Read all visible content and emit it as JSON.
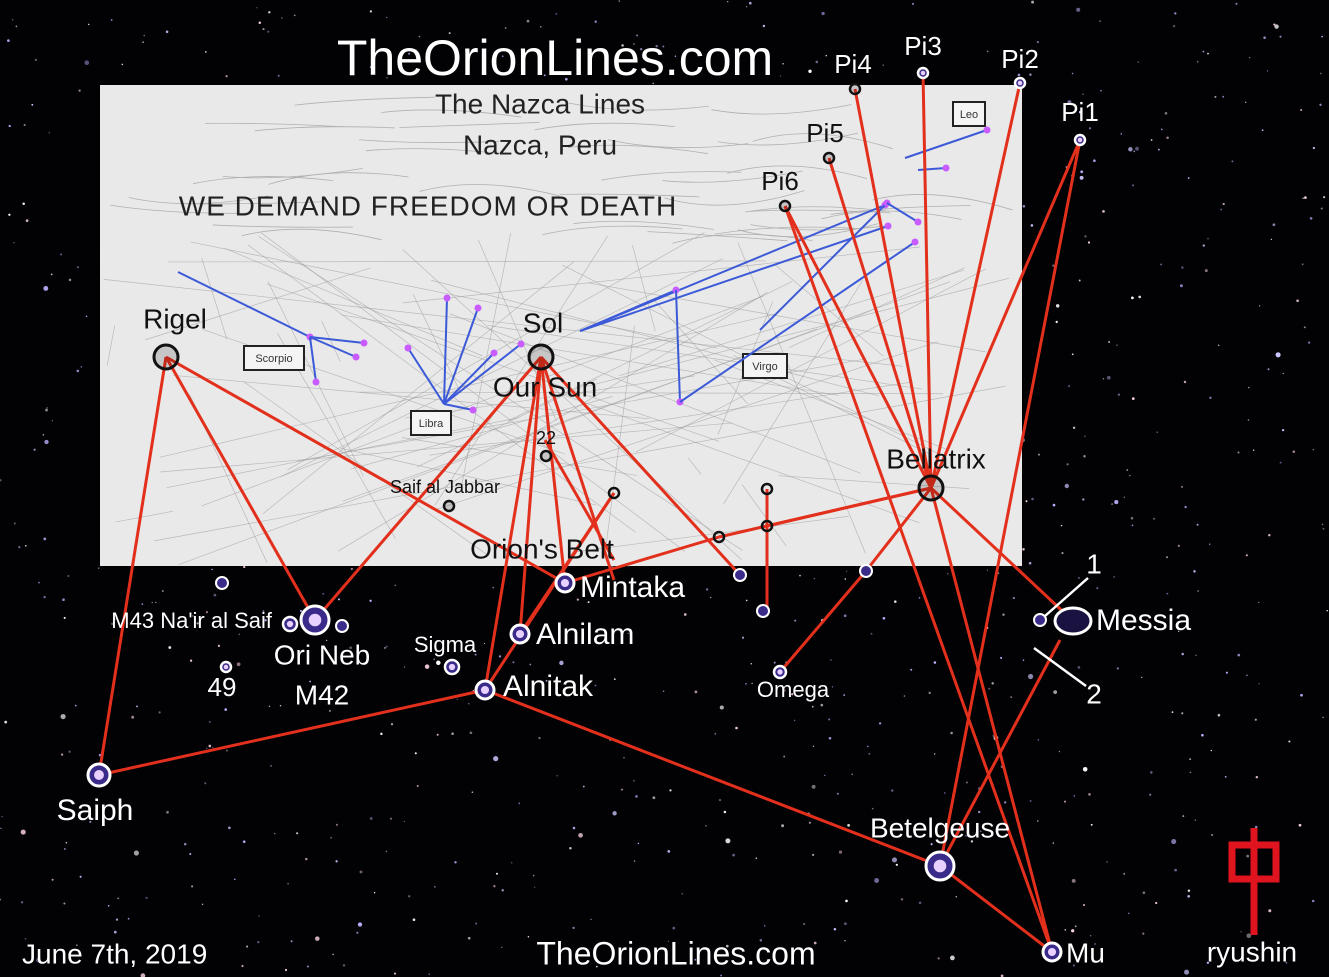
{
  "header": {
    "title": "TheOrionLines.com"
  },
  "map": {
    "title": "The Nazca Lines",
    "subtitle": "Nazca, Peru",
    "slogan": "WE DEMAND FREEDOM OR DEATH",
    "constellations": [
      "Scorpio",
      "Libra",
      "Virgo",
      "Leo"
    ]
  },
  "stars": [
    {
      "label": "Pi4"
    },
    {
      "label": "Pi3"
    },
    {
      "label": "Pi2"
    },
    {
      "label": "Pi1"
    },
    {
      "label": "Pi5"
    },
    {
      "label": "Pi6"
    },
    {
      "label": "Rigel"
    },
    {
      "label": "Sol"
    },
    {
      "label": "Our Sun"
    },
    {
      "label": "22"
    },
    {
      "label": "Saif al Jabbar"
    },
    {
      "label": "Bellatrix"
    },
    {
      "label": "Orion's Belt"
    },
    {
      "label": "Mintaka"
    },
    {
      "label": "Alnilam"
    },
    {
      "label": "Alnitak"
    },
    {
      "label": "Sigma"
    },
    {
      "label": "M43 Na'ir al Saif"
    },
    {
      "label": "Ori Neb"
    },
    {
      "label": "M42"
    },
    {
      "label": "49"
    },
    {
      "label": "Omega"
    },
    {
      "label": "Messia"
    },
    {
      "label": "1"
    },
    {
      "label": "2"
    },
    {
      "label": "Saiph"
    },
    {
      "label": "Betelgeuse"
    },
    {
      "label": "Mu"
    }
  ],
  "footer": {
    "date": "June 7th, 2019",
    "site": "TheOrionLines.com",
    "signature": "ryushin"
  }
}
